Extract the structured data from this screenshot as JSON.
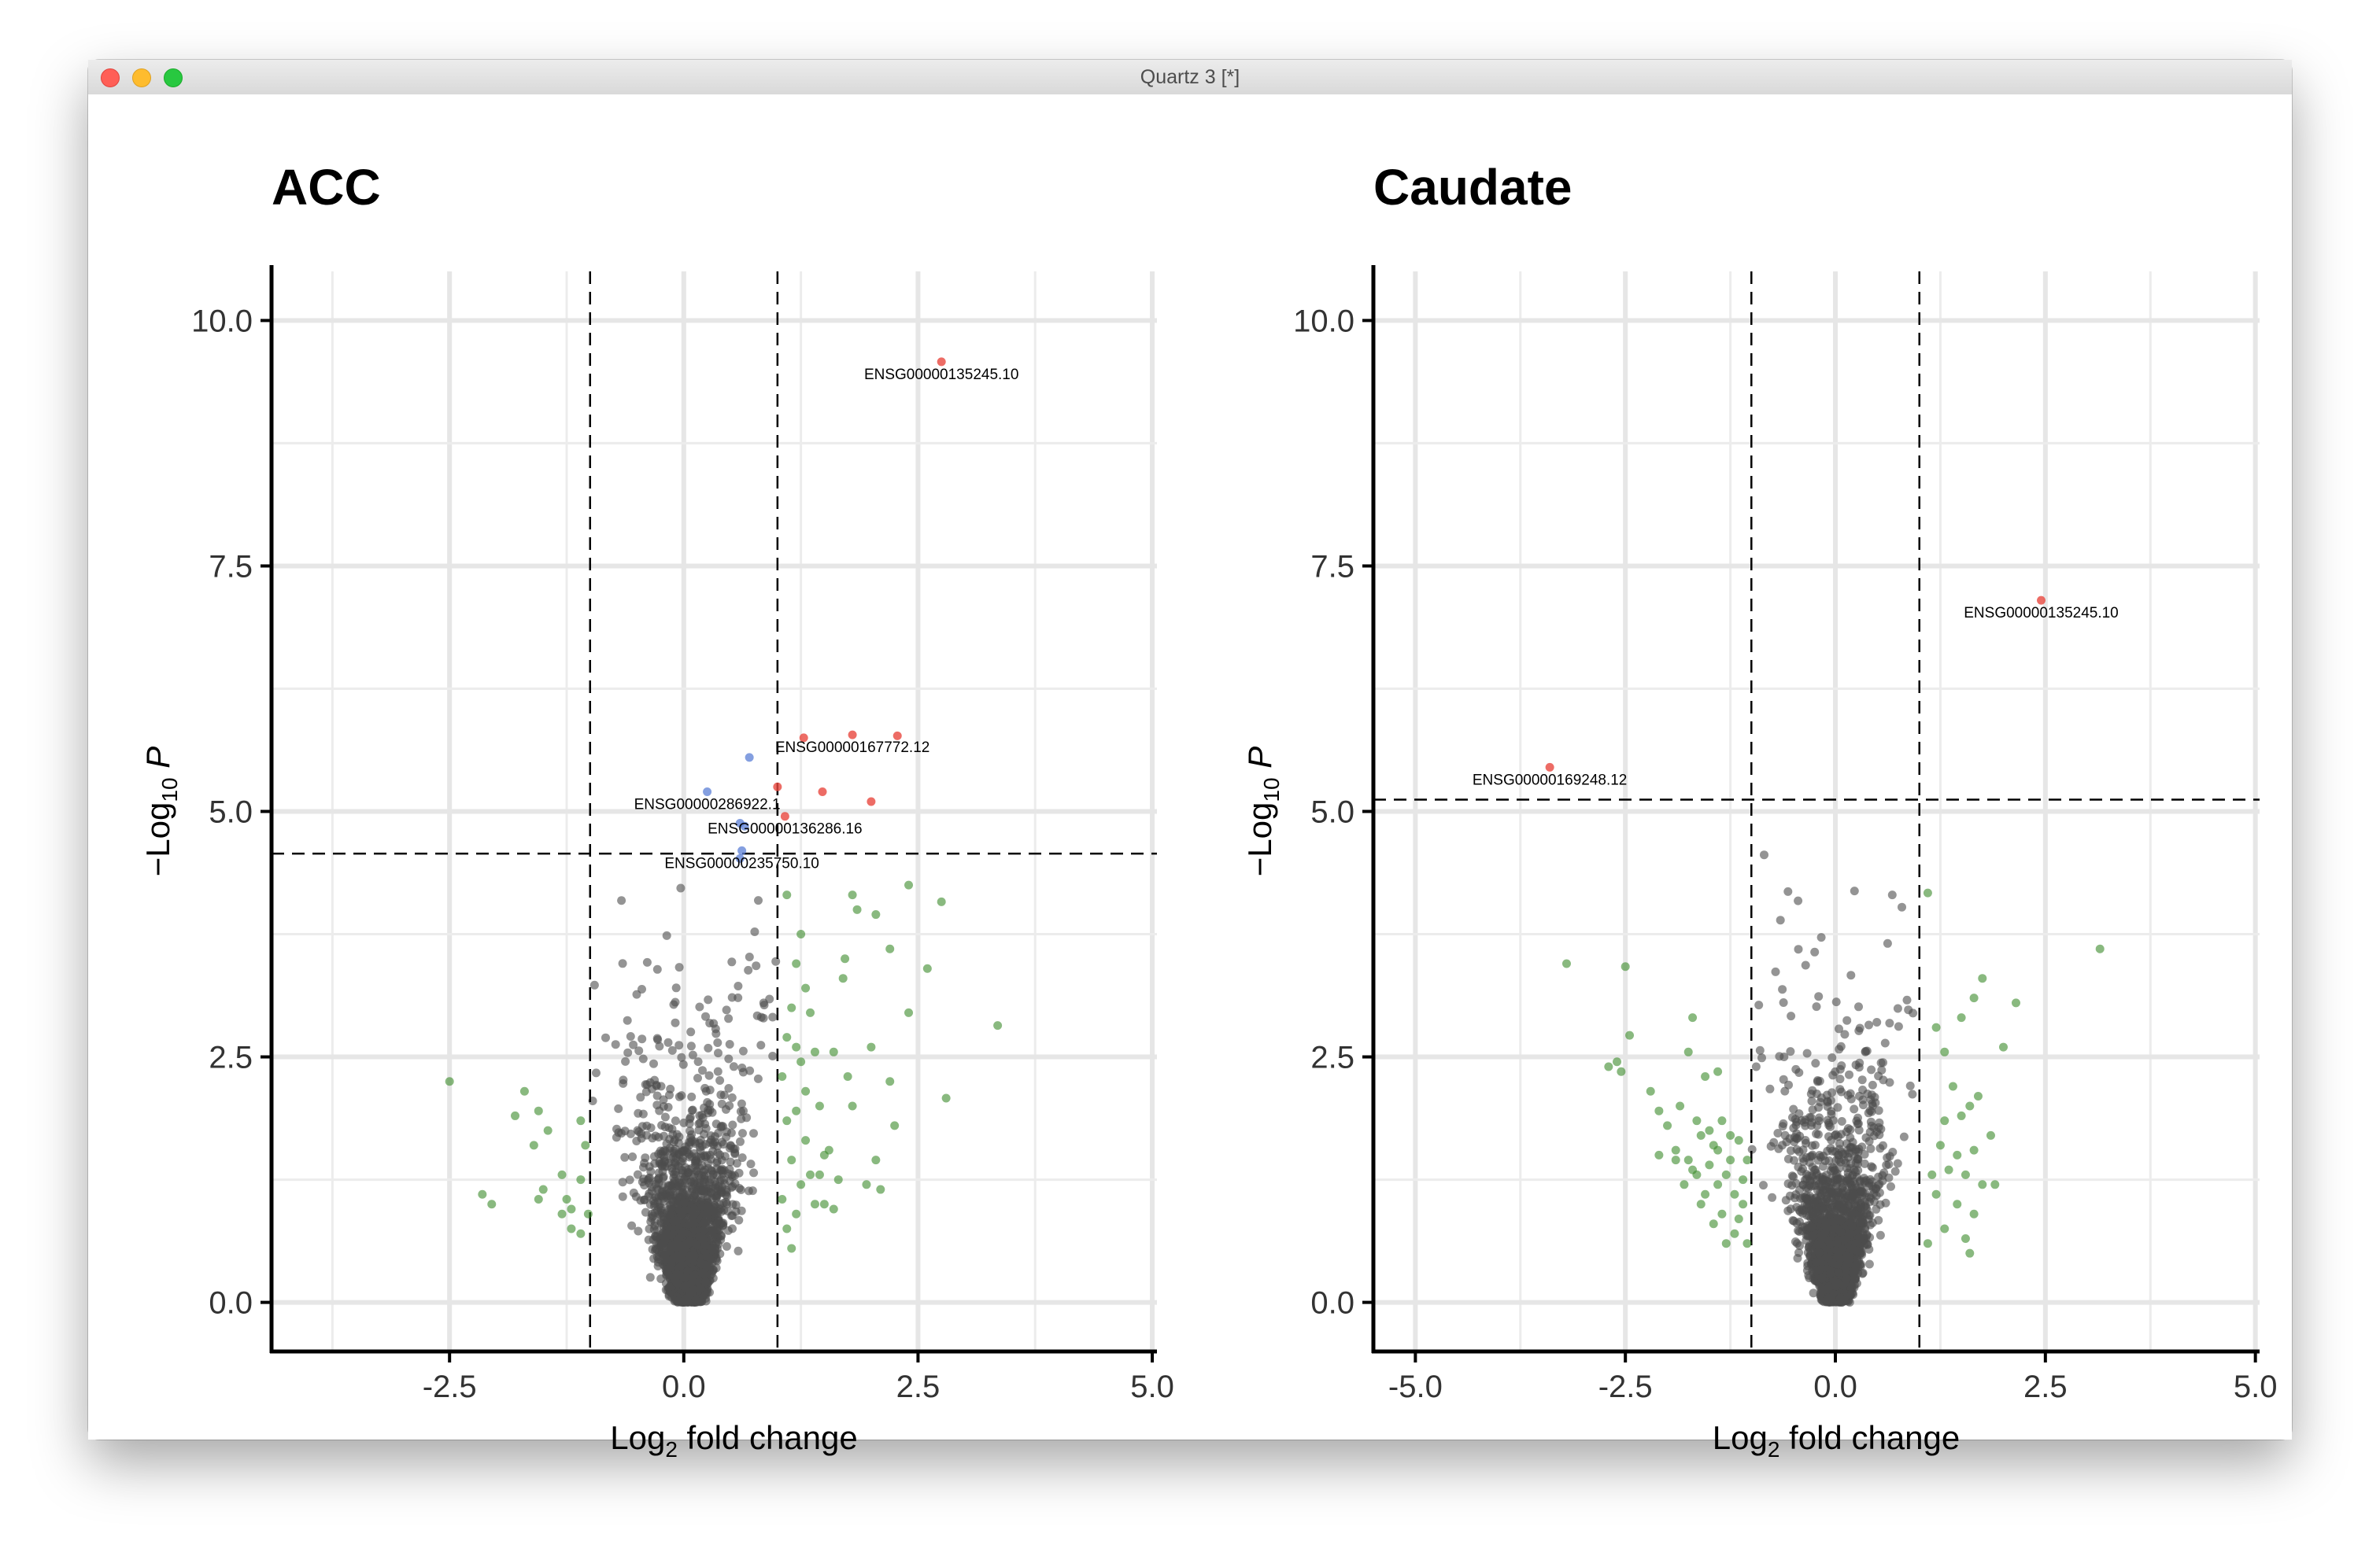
{
  "window": {
    "title": "Quartz 3 [*]",
    "controls": [
      "close-icon",
      "minimize-icon",
      "zoom-icon"
    ]
  },
  "chart_data": [
    {
      "type": "scatter",
      "title": "ACC",
      "xlabel": "Log2 fold change",
      "ylabel": "-Log10 P",
      "xlim": [
        -4.4,
        5.05
      ],
      "ylim": [
        -0.5,
        10.5
      ],
      "xticks": [
        "-2.5",
        "0.0",
        "2.5",
        "5.0"
      ],
      "xtick_values": [
        -2.5,
        0.0,
        2.5,
        5.0
      ],
      "yticks": [
        "0.0",
        "2.5",
        "5.0",
        "7.5",
        "10.0"
      ],
      "ytick_values": [
        0,
        2.5,
        5.0,
        7.5,
        10.0
      ],
      "grid": true,
      "vlines": [
        -1,
        1
      ],
      "hline": 4.57,
      "colors": {
        "ns": "#4d4d4d",
        "log2fc": "#3a8a2a",
        "p": "#5b7fd6",
        "both": "#e8473f"
      },
      "points_both": [
        [
          2.75,
          9.58
        ],
        [
          1.28,
          5.75
        ],
        [
          1.8,
          5.78
        ],
        [
          2.28,
          5.77
        ],
        [
          1.0,
          5.25
        ],
        [
          1.48,
          5.2
        ],
        [
          2.0,
          5.1
        ],
        [
          1.08,
          4.95
        ]
      ],
      "points_p": [
        [
          0.7,
          5.55
        ],
        [
          0.25,
          5.2
        ],
        [
          0.6,
          4.88
        ],
        [
          0.65,
          4.85
        ],
        [
          0.62,
          4.6
        ],
        [
          0.6,
          4.52
        ]
      ],
      "points_green": [
        [
          -2.5,
          2.25
        ],
        [
          -2.15,
          1.1
        ],
        [
          -2.05,
          1.0
        ],
        [
          -1.7,
          2.15
        ],
        [
          -1.8,
          1.9
        ],
        [
          -1.55,
          1.95
        ],
        [
          -1.45,
          1.75
        ],
        [
          -1.6,
          1.6
        ],
        [
          -1.5,
          1.15
        ],
        [
          -1.55,
          1.05
        ],
        [
          -1.3,
          1.3
        ],
        [
          -1.25,
          1.05
        ],
        [
          -1.2,
          0.95
        ],
        [
          -1.1,
          1.85
        ],
        [
          -1.05,
          1.6
        ],
        [
          -1.1,
          1.25
        ],
        [
          -1.02,
          0.9
        ],
        [
          -1.3,
          0.9
        ],
        [
          -1.1,
          0.7
        ],
        [
          -1.2,
          0.75
        ],
        [
          1.1,
          4.15
        ],
        [
          1.25,
          3.75
        ],
        [
          1.2,
          3.45
        ],
        [
          1.3,
          3.2
        ],
        [
          1.15,
          3.0
        ],
        [
          1.35,
          2.95
        ],
        [
          1.1,
          2.7
        ],
        [
          1.2,
          2.6
        ],
        [
          1.25,
          2.45
        ],
        [
          1.4,
          2.55
        ],
        [
          1.05,
          2.3
        ],
        [
          1.3,
          2.15
        ],
        [
          1.45,
          2.0
        ],
        [
          1.2,
          1.95
        ],
        [
          1.1,
          1.85
        ],
        [
          1.3,
          1.65
        ],
        [
          1.5,
          1.5
        ],
        [
          1.15,
          1.45
        ],
        [
          1.35,
          1.3
        ],
        [
          1.25,
          1.2
        ],
        [
          1.05,
          1.05
        ],
        [
          1.4,
          1.0
        ],
        [
          1.2,
          0.9
        ],
        [
          1.1,
          0.75
        ],
        [
          1.15,
          0.55
        ],
        [
          1.8,
          4.15
        ],
        [
          2.05,
          3.95
        ],
        [
          2.4,
          4.25
        ],
        [
          2.75,
          4.08
        ],
        [
          1.85,
          4.0
        ],
        [
          1.7,
          3.3
        ],
        [
          1.72,
          3.5
        ],
        [
          2.2,
          3.6
        ],
        [
          2.6,
          3.4
        ],
        [
          3.35,
          2.82
        ],
        [
          2.4,
          2.95
        ],
        [
          2.0,
          2.6
        ],
        [
          1.6,
          2.55
        ],
        [
          1.75,
          2.3
        ],
        [
          2.2,
          2.25
        ],
        [
          2.8,
          2.08
        ],
        [
          1.8,
          2.0
        ],
        [
          2.25,
          1.8
        ],
        [
          1.55,
          1.55
        ],
        [
          2.05,
          1.45
        ],
        [
          1.95,
          1.2
        ],
        [
          2.1,
          1.15
        ],
        [
          1.65,
          1.25
        ],
        [
          1.5,
          1.0
        ],
        [
          1.6,
          0.95
        ],
        [
          1.45,
          1.3
        ]
      ],
      "labels": [
        {
          "text": "ENSG00000135245.10",
          "x": 2.75,
          "y": 9.58
        },
        {
          "text": "ENSG00000167772.12",
          "x": 1.8,
          "y": 5.78
        },
        {
          "text": "ENSG00000286922.1",
          "x": 0.25,
          "y": 5.2
        },
        {
          "text": "ENSG00000136286.16",
          "x": 1.08,
          "y": 4.95
        },
        {
          "text": "ENSG00000235750.10",
          "x": 0.62,
          "y": 4.6
        }
      ]
    },
    {
      "type": "scatter",
      "title": "Caudate",
      "xlabel": "Log2 fold change",
      "ylabel": "-Log10 P",
      "xlim": [
        -5.5,
        5.05
      ],
      "ylim": [
        -0.5,
        10.5
      ],
      "xticks": [
        "-5.0",
        "-2.5",
        "0.0",
        "2.5",
        "5.0"
      ],
      "xtick_values": [
        -5.0,
        -2.5,
        0.0,
        2.5,
        5.0
      ],
      "yticks": [
        "0.0",
        "2.5",
        "5.0",
        "7.5",
        "10.0"
      ],
      "ytick_values": [
        0,
        2.5,
        5.0,
        7.5,
        10.0
      ],
      "grid": true,
      "vlines": [
        -1,
        1
      ],
      "hline": 5.12,
      "colors": {
        "ns": "#4d4d4d",
        "log2fc": "#3a8a2a",
        "p": "#5b7fd6",
        "both": "#e8473f"
      },
      "points_both": [
        [
          2.45,
          7.15
        ],
        [
          -3.4,
          5.45
        ]
      ],
      "points_p": [],
      "points_green": [
        [
          -3.2,
          3.45
        ],
        [
          -2.5,
          3.42
        ],
        [
          -2.45,
          2.72
        ],
        [
          -2.6,
          2.45
        ],
        [
          -2.7,
          2.4
        ],
        [
          -2.55,
          2.35
        ],
        [
          -2.2,
          2.15
        ],
        [
          -2.1,
          1.95
        ],
        [
          -1.7,
          2.9
        ],
        [
          -1.4,
          2.35
        ],
        [
          -1.75,
          2.55
        ],
        [
          -1.55,
          2.3
        ],
        [
          -1.85,
          2.0
        ],
        [
          -2.0,
          1.8
        ],
        [
          -1.65,
          1.85
        ],
        [
          -1.9,
          1.55
        ],
        [
          -2.1,
          1.5
        ],
        [
          -1.75,
          1.45
        ],
        [
          -1.6,
          1.7
        ],
        [
          -1.45,
          1.6
        ],
        [
          -1.35,
          1.85
        ],
        [
          -1.25,
          1.7
        ],
        [
          -1.15,
          1.65
        ],
        [
          -1.5,
          1.4
        ],
        [
          -1.65,
          1.3
        ],
        [
          -1.8,
          1.2
        ],
        [
          -1.55,
          1.1
        ],
        [
          -1.4,
          1.2
        ],
        [
          -1.3,
          1.3
        ],
        [
          -1.2,
          1.1
        ],
        [
          -1.1,
          1.0
        ],
        [
          -1.35,
          0.9
        ],
        [
          -1.45,
          0.8
        ],
        [
          -1.2,
          0.7
        ],
        [
          -1.3,
          0.6
        ],
        [
          -1.05,
          1.45
        ],
        [
          -1.1,
          1.25
        ],
        [
          -1.25,
          1.45
        ],
        [
          -1.6,
          1.0
        ],
        [
          -1.15,
          0.85
        ],
        [
          -1.4,
          1.55
        ],
        [
          -1.7,
          1.35
        ],
        [
          -1.5,
          1.75
        ],
        [
          -1.9,
          1.45
        ],
        [
          -1.05,
          0.6
        ],
        [
          1.1,
          4.17
        ],
        [
          1.2,
          2.8
        ],
        [
          1.3,
          2.55
        ],
        [
          1.5,
          2.9
        ],
        [
          1.75,
          3.3
        ],
        [
          1.65,
          3.1
        ],
        [
          2.15,
          3.05
        ],
        [
          2.0,
          2.6
        ],
        [
          3.15,
          3.6
        ],
        [
          1.4,
          2.2
        ],
        [
          1.7,
          2.1
        ],
        [
          1.6,
          2.0
        ],
        [
          1.85,
          1.7
        ],
        [
          1.3,
          1.85
        ],
        [
          1.5,
          1.9
        ],
        [
          1.25,
          1.6
        ],
        [
          1.45,
          1.5
        ],
        [
          1.65,
          1.55
        ],
        [
          1.15,
          1.3
        ],
        [
          1.35,
          1.35
        ],
        [
          1.55,
          1.3
        ],
        [
          1.75,
          1.2
        ],
        [
          1.9,
          1.2
        ],
        [
          1.2,
          1.1
        ],
        [
          1.45,
          1.0
        ],
        [
          1.65,
          0.9
        ],
        [
          1.3,
          0.75
        ],
        [
          1.55,
          0.65
        ],
        [
          1.1,
          0.6
        ],
        [
          1.6,
          0.5
        ]
      ],
      "labels": [
        {
          "text": "ENSG00000135245.10",
          "x": 2.45,
          "y": 7.15
        },
        {
          "text": "ENSG00000169248.12",
          "x": -3.4,
          "y": 5.45
        }
      ]
    }
  ]
}
